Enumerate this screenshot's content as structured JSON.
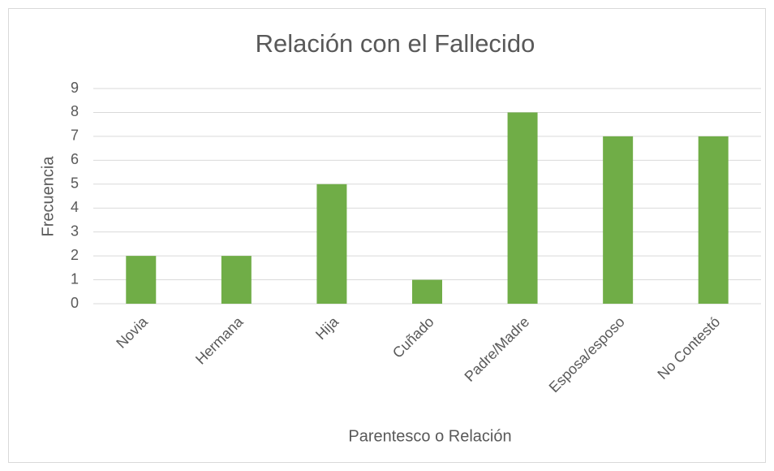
{
  "chart_data": {
    "type": "bar",
    "title": "Relación con el Fallecido",
    "categories": [
      "Novia",
      "Hermana",
      "Hija",
      "Cuñado",
      "Padre/Madre",
      "Esposa/esposo",
      "No Contestó"
    ],
    "values": [
      2,
      2,
      5,
      1,
      8,
      7,
      7
    ],
    "color": "#70ad47",
    "x_label": "Parentesco o Relación",
    "y_label": "Frecuencia",
    "ylim": [
      0,
      9
    ],
    "yticks": [
      0,
      1,
      2,
      3,
      4,
      5,
      6,
      7,
      8,
      9
    ],
    "grid": true
  }
}
